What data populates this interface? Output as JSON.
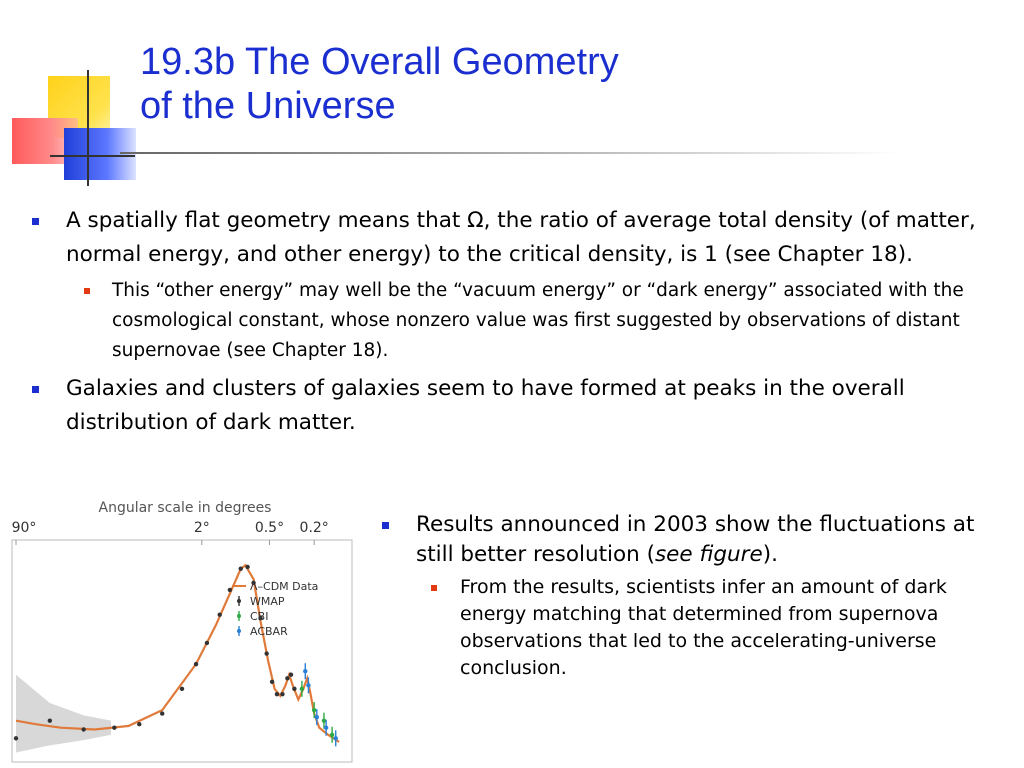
{
  "title": {
    "line1": "19.3b The Overall Geometry",
    "line2": "of the Universe"
  },
  "bullets": [
    {
      "text": "A spatially flat geometry means that Ω, the ratio of average total density (of matter, normal energy, and other energy) to the critical density, is 1 (see Chapter 18).",
      "sub": "This “other energy” may well be the “vacuum energy” or “dark energy” associated with the cosmological constant, whose nonzero value was first suggested by observations of distant supernovae (see Chapter 18)."
    },
    {
      "text": "Galaxies and clusters of galaxies seem to have formed at peaks in the overall distribution of dark matter."
    }
  ],
  "right": {
    "text_before": "Results announced in 2003 show the fluctuations at still better resolution (",
    "text_italic": "see figure",
    "text_after": ").",
    "sub": "From the results, scientists infer an amount of dark energy matching that determined from supernova observations that led to the accelerating-universe conclusion."
  },
  "colors": {
    "title": "#1b2fd0",
    "bullet_l1": "#1b2fd0",
    "bullet_l2": "#e33a13",
    "model_line": "#e07a3a",
    "wmap": "#333333",
    "cbi": "#2eaa44",
    "acbar": "#2a7fd6"
  },
  "chart_data": {
    "type": "line",
    "title": "Angular scale in degrees",
    "x_ticks": [
      "90°",
      "2°",
      "0.5°",
      "0.2°"
    ],
    "x_tick_positions_multipole": [
      2,
      90,
      360,
      900
    ],
    "xlim": [
      2,
      1800
    ],
    "ylim": [
      0,
      6000
    ],
    "legend": [
      "Λ–CDM Data",
      "WMAP",
      "CBI",
      "ACBAR"
    ],
    "legend_placement": "right",
    "series": [
      {
        "name": "Λ–CDM Data",
        "type": "line",
        "points": [
          [
            2,
            1000
          ],
          [
            3,
            900
          ],
          [
            5,
            800
          ],
          [
            10,
            750
          ],
          [
            20,
            850
          ],
          [
            40,
            1300
          ],
          [
            80,
            2600
          ],
          [
            120,
            3700
          ],
          [
            160,
            4600
          ],
          [
            200,
            5300
          ],
          [
            220,
            5400
          ],
          [
            260,
            5000
          ],
          [
            300,
            3800
          ],
          [
            350,
            2700
          ],
          [
            400,
            1900
          ],
          [
            450,
            1700
          ],
          [
            500,
            2000
          ],
          [
            540,
            2300
          ],
          [
            580,
            2000
          ],
          [
            650,
            1600
          ],
          [
            720,
            1900
          ],
          [
            780,
            2200
          ],
          [
            830,
            1800
          ],
          [
            900,
            1200
          ],
          [
            1000,
            800
          ],
          [
            1200,
            600
          ],
          [
            1500,
            400
          ]
        ]
      },
      {
        "name": "WMAP",
        "points": [
          [
            2,
            500
          ],
          [
            4,
            1000
          ],
          [
            8,
            750
          ],
          [
            15,
            800
          ],
          [
            25,
            900
          ],
          [
            40,
            1200
          ],
          [
            60,
            1900
          ],
          [
            80,
            2600
          ],
          [
            100,
            3200
          ],
          [
            130,
            4000
          ],
          [
            160,
            4700
          ],
          [
            200,
            5300
          ],
          [
            230,
            5350
          ],
          [
            260,
            4900
          ],
          [
            300,
            3900
          ],
          [
            340,
            2900
          ],
          [
            380,
            2100
          ],
          [
            420,
            1750
          ],
          [
            470,
            1750
          ],
          [
            520,
            2200
          ],
          [
            560,
            2300
          ],
          [
            600,
            1900
          ]
        ]
      },
      {
        "name": "CBI",
        "points": [
          [
            700,
            1900
          ],
          [
            900,
            1300
          ],
          [
            1100,
            1000
          ],
          [
            1300,
            600
          ]
        ]
      },
      {
        "name": "ACBAR",
        "points": [
          [
            750,
            2400
          ],
          [
            800,
            2000
          ],
          [
            950,
            1100
          ],
          [
            1150,
            800
          ],
          [
            1400,
            500
          ]
        ]
      }
    ]
  }
}
